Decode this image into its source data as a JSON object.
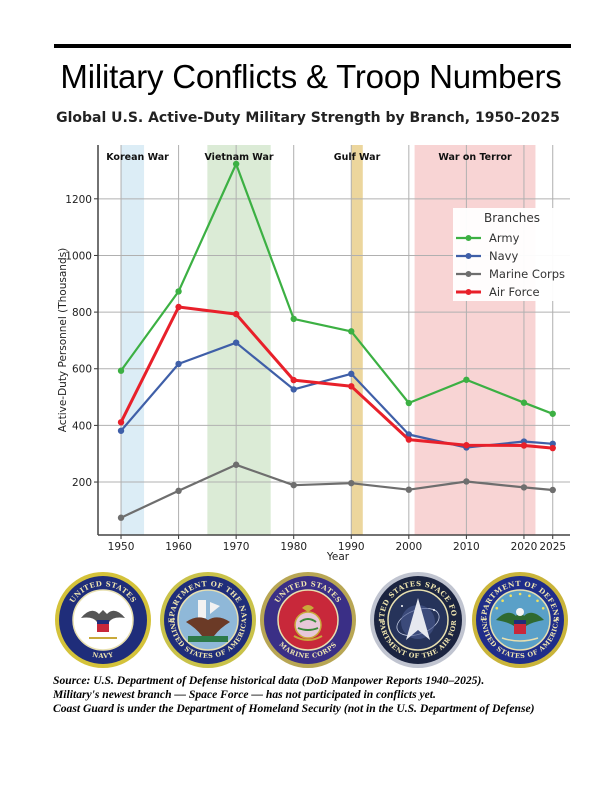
{
  "header": {
    "title": "Military Conflicts & Troop Numbers",
    "subtitle": "Global U.S. Active-Duty Military Strength by Branch, 1950–2025"
  },
  "chart_data": {
    "type": "line",
    "title": "Global U.S. Active-Duty Military Strength by Branch, 1950–2025",
    "xlabel": "Year",
    "ylabel": "Active-Duty Personnel (Thousands)",
    "x": [
      1950,
      1960,
      1970,
      1980,
      1990,
      2000,
      2010,
      2020,
      2025
    ],
    "x_tick_labels": [
      "1950",
      "1960",
      "1970",
      "1980",
      "1990",
      "2000",
      "2010",
      "2020",
      "2025"
    ],
    "y_ticks": [
      200,
      400,
      600,
      800,
      1000,
      1200
    ],
    "xlim": [
      1946,
      2028
    ],
    "ylim": [
      13,
      1390
    ],
    "grid": true,
    "legend": {
      "title": "Branches",
      "placement": "upper-right"
    },
    "series": [
      {
        "name": "Army",
        "color": "#3cb043",
        "values": [
          593,
          873,
          1323,
          776,
          732,
          479,
          561,
          480,
          441
        ]
      },
      {
        "name": "Navy",
        "color": "#3f5fa8",
        "values": [
          381,
          617,
          692,
          527,
          582,
          368,
          322,
          343,
          335
        ]
      },
      {
        "name": "Marine Corps",
        "color": "#6e6e6e",
        "values": [
          74,
          169,
          261,
          189,
          196,
          173,
          202,
          181,
          172
        ]
      },
      {
        "name": "Air Force",
        "color": "#e8202a",
        "values": [
          411,
          818,
          793,
          560,
          538,
          350,
          330,
          329,
          320
        ]
      }
    ],
    "annotations": [
      {
        "label": "Korean War",
        "start": 1950,
        "end": 1954,
        "color": "#d6eaf5"
      },
      {
        "label": "Vietnam War",
        "start": 1965,
        "end": 1976,
        "color": "#d5e8cf"
      },
      {
        "label": "Gulf War",
        "start": 1990,
        "end": 1992,
        "color": "#e9cf8c"
      },
      {
        "label": "War on Terror",
        "start": 2001,
        "end": 2022,
        "color": "#f7cccc"
      }
    ]
  },
  "seals": [
    {
      "name": "United States Navy",
      "top_text": "UNITED STATES",
      "bottom_text": "NAVY",
      "ring": "#1f2d7a",
      "rim": "#d4c23a",
      "center": "#ffffff"
    },
    {
      "name": "Department of the Navy",
      "top_text": "DEPARTMENT OF THE NAVY",
      "bottom_text": "UNITED STATES OF AMERICA",
      "ring": "#1f2d7a",
      "rim": "#c9c24a",
      "center": "#8fb8d8"
    },
    {
      "name": "United States Marine Corps",
      "top_text": "UNITED STATES",
      "bottom_text": "MARINE CORPS",
      "ring": "#3a2f86",
      "rim": "#b8a654",
      "center": "#c8283a"
    },
    {
      "name": "United States Space Force",
      "top_text": "UNITED STATES SPACE FORCE",
      "bottom_text": "DEPARTMENT OF THE AIR FORCE",
      "ring": "#1b2440",
      "rim": "#c0c4d0",
      "center": "#26335a"
    },
    {
      "name": "Department of Defense",
      "top_text": "DEPARTMENT OF DEFENSE",
      "bottom_text": "UNITED STATES OF AMERICA",
      "ring": "#1f2d8a",
      "rim": "#c9b43a",
      "center": "#5aa0c8"
    }
  ],
  "footnotes": [
    "Source: U.S. Department of Defense historical data (DoD Manpower Reports 1940–2025).",
    "Military's newest branch — Space Force — has not participated in conflicts yet.",
    "Coast Guard is under the Department of Homeland Security (not in the U.S. Department of Defense)"
  ]
}
